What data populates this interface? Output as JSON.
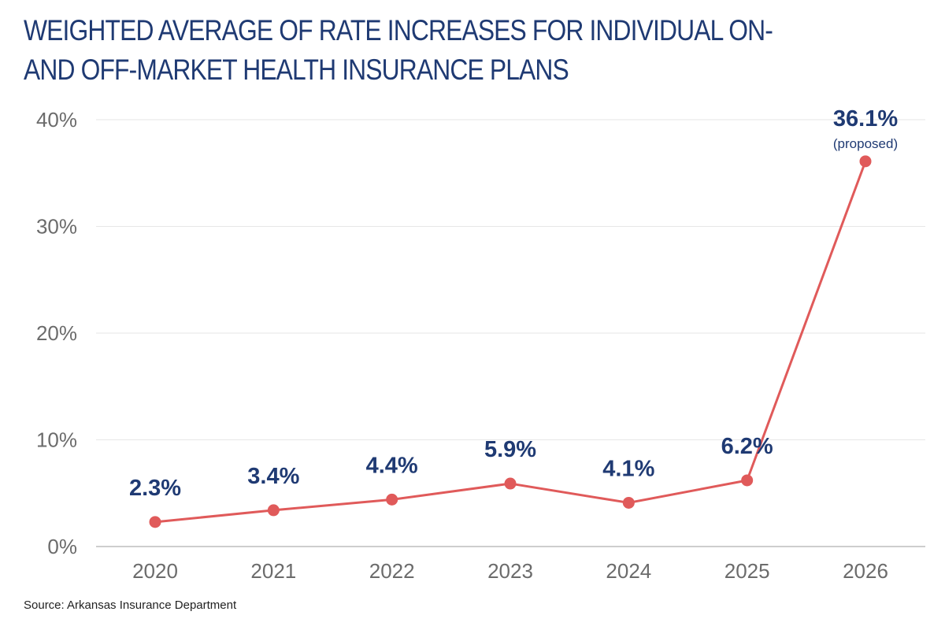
{
  "chart_data": {
    "type": "line",
    "title": "WEIGHTED AVERAGE OF RATE INCREASES FOR INDIVIDUAL ON- AND OFF-MARKET HEALTH INSURANCE PLANS",
    "xlabel": "",
    "ylabel": "",
    "categories": [
      "2020",
      "2021",
      "2022",
      "2023",
      "2024",
      "2025",
      "2026"
    ],
    "values": [
      2.3,
      3.4,
      4.4,
      5.9,
      4.1,
      6.2,
      36.1
    ],
    "data_labels": [
      "2.3%",
      "3.4%",
      "4.4%",
      "5.9%",
      "4.1%",
      "6.2%",
      "36.1%"
    ],
    "annotations": [
      {
        "category": "2026",
        "text": "(proposed)"
      }
    ],
    "ylim": [
      0,
      40
    ],
    "y_ticks": [
      0,
      10,
      20,
      30,
      40
    ],
    "y_tick_labels": [
      "0%",
      "10%",
      "20%",
      "30%",
      "40%"
    ],
    "grid": true,
    "legend": "none",
    "colors": {
      "line": "#e05a5a",
      "labels": "#1f3a73",
      "grid": "#e6e6e6",
      "axis": "#bdbdbd"
    }
  },
  "source": "Source: Arkansas Insurance Department"
}
